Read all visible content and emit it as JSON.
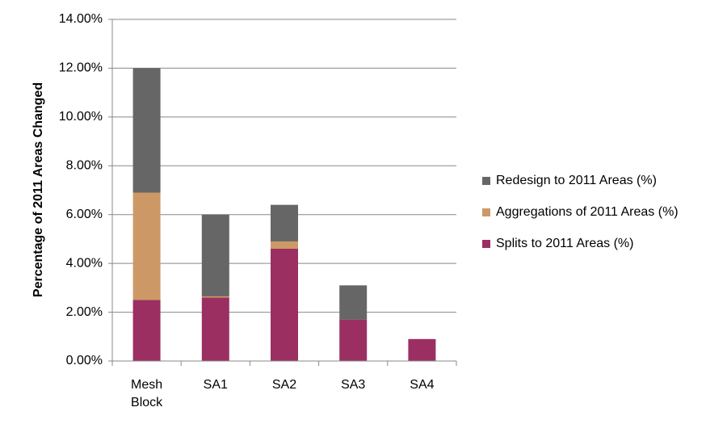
{
  "chart_data": {
    "type": "bar",
    "stacked": true,
    "categories": [
      [
        "Mesh",
        "Block"
      ],
      [
        "SA1"
      ],
      [
        "SA2"
      ],
      [
        "SA3"
      ],
      [
        "SA4"
      ]
    ],
    "series": [
      {
        "name": "Splits to 2011 Areas (%)",
        "color": "#9b2f62",
        "values": [
          2.5,
          2.6,
          4.6,
          1.7,
          0.9
        ]
      },
      {
        "name": "Aggregations of 2011 Areas (%)",
        "color": "#cc9966",
        "values": [
          4.4,
          0.05,
          0.3,
          0.0,
          0.0
        ]
      },
      {
        "name": "Redesign to 2011 Areas (%)",
        "color": "#666666",
        "values": [
          5.1,
          3.35,
          1.5,
          1.4,
          0.0
        ]
      }
    ],
    "ylabel": "Percentage of 2011 Areas Changed",
    "ylim": [
      0,
      14
    ],
    "yticks": [
      0,
      2,
      4,
      6,
      8,
      10,
      12,
      14
    ],
    "ytick_labels": [
      "0.00%",
      "2.00%",
      "4.00%",
      "6.00%",
      "8.00%",
      "10.00%",
      "12.00%",
      "14.00%"
    ],
    "legend_order": [
      2,
      1,
      0
    ],
    "legend_position": "right",
    "grid": true,
    "gridline_color": "#888888"
  }
}
